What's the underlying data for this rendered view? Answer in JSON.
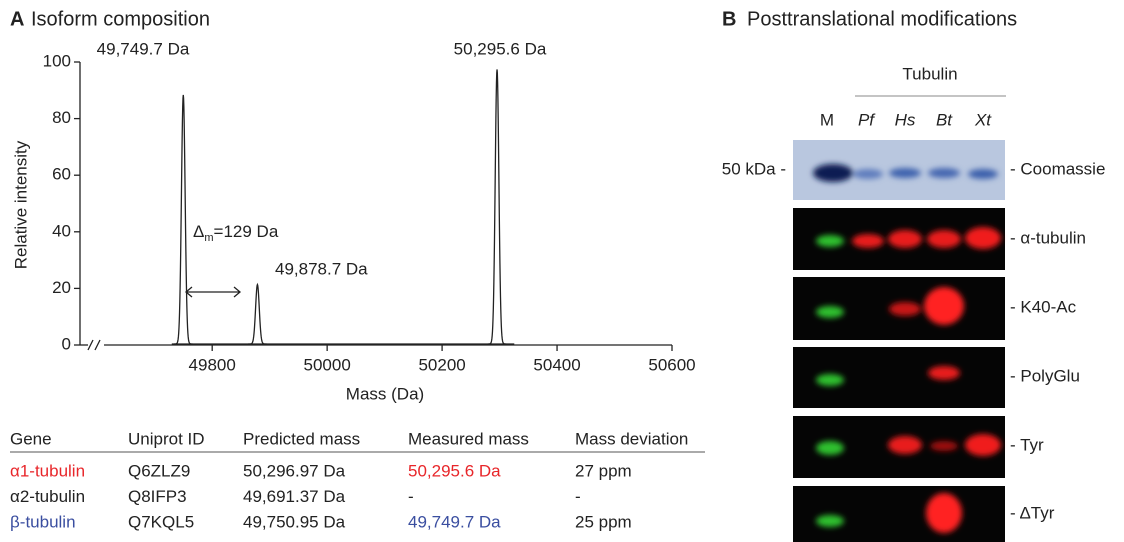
{
  "chart_data": {
    "type": "spectrum",
    "panel_letter": "A",
    "title": "Isoform composition",
    "x_label": "Mass (Da)",
    "y_label": "Relative intensity",
    "x": [
      49749.7,
      49878.7,
      50295.6
    ],
    "values": [
      88,
      21,
      97
    ],
    "value_labels": [
      "49,749.7 Da",
      "49,878.7 Da",
      "50,295.6 Da"
    ],
    "colors": [
      "#3a4ea0",
      "#222222",
      "#e8262a"
    ],
    "delta_label": {
      "symbol": "Δ",
      "subscript": "m",
      "text": "=129 Da"
    },
    "xlim": [
      49570,
      50600
    ],
    "xticks": [
      49800,
      50000,
      50200,
      50400,
      50600
    ],
    "ylim": [
      0,
      100
    ],
    "yticks": [
      0,
      20,
      40,
      60,
      80,
      100
    ]
  },
  "table": {
    "header": [
      "Gene",
      "Uniprot ID",
      "Predicted mass",
      "Measured mass",
      "Mass deviation"
    ],
    "rows": [
      [
        "α1-tubulin",
        "Q6ZLZ9",
        "50,296.97 Da",
        "50,295.6 Da",
        "27 ppm"
      ],
      [
        "α2-tubulin",
        "Q8IFP3",
        "49,691.37 Da",
        "-",
        "-"
      ],
      [
        "β-tubulin",
        "Q7KQL5",
        "49,750.95 Da",
        "49,749.7 Da",
        "25 ppm"
      ]
    ]
  },
  "panel_b": {
    "panel_letter": "B",
    "title": "Posttranslational modifications",
    "group_label": "Tubulin",
    "lanes": [
      "M",
      "Pf",
      "Hs",
      "Bt",
      "Xt"
    ],
    "marker_label": "50 kDa -",
    "blots": [
      "- Coomassie",
      "- α-tubulin",
      "- K40-Ac",
      "- PolyGlu",
      "- Tyr",
      "- ΔTyr"
    ]
  }
}
